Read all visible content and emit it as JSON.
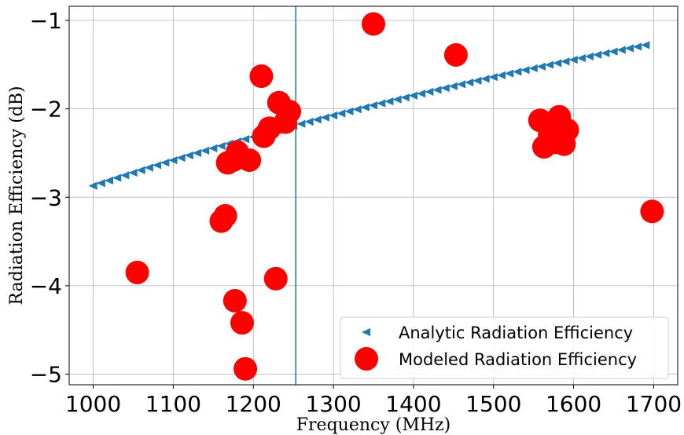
{
  "chart_data": {
    "type": "scatter",
    "xlabel": "Frequency (MHz)",
    "ylabel": "Radiation Efficiency (dB)",
    "xlim": [
      970,
      1730
    ],
    "ylim": [
      -5.12,
      -0.84
    ],
    "xticks": [
      1000,
      1100,
      1200,
      1300,
      1400,
      1500,
      1600,
      1700
    ],
    "yticks": [
      -1,
      -2,
      -3,
      -4,
      -5
    ],
    "xtick_labels": [
      "1000",
      "1100",
      "1200",
      "1300",
      "1400",
      "1500",
      "1600",
      "1700"
    ],
    "ytick_labels": [
      "−1",
      "−2",
      "−3",
      "−4",
      "−5"
    ],
    "grid": true,
    "legend_position": "lower-right",
    "vline_x": 1253,
    "colors": {
      "analytic": "#1f77b4",
      "modeled": "#ff0000",
      "vline": "#1f77b4"
    },
    "series": [
      {
        "name": "Analytic Radiation Efficiency",
        "marker": "triangle-left",
        "x_start": 1000,
        "x_end": 1695,
        "x_step": 10,
        "y_start": -2.87,
        "y_end": -1.27
      },
      {
        "name": "Modeled Radiation Efficiency",
        "marker": "circle",
        "points": [
          [
            1055,
            -3.85
          ],
          [
            1160,
            -3.27
          ],
          [
            1165,
            -3.21
          ],
          [
            1168,
            -2.61
          ],
          [
            1175,
            -2.58
          ],
          [
            1180,
            -2.49
          ],
          [
            1177,
            -4.17
          ],
          [
            1186,
            -4.42
          ],
          [
            1190,
            -4.94
          ],
          [
            1195,
            -2.58
          ],
          [
            1210,
            -1.63
          ],
          [
            1213,
            -2.31
          ],
          [
            1220,
            -2.22
          ],
          [
            1228,
            -3.92
          ],
          [
            1232,
            -1.93
          ],
          [
            1240,
            -2.15
          ],
          [
            1245,
            -2.03
          ],
          [
            1350,
            -1.04
          ],
          [
            1453,
            -1.39
          ],
          [
            1558,
            -2.13
          ],
          [
            1563,
            -2.43
          ],
          [
            1570,
            -2.3
          ],
          [
            1575,
            -2.38
          ],
          [
            1580,
            -2.3
          ],
          [
            1582,
            -2.09
          ],
          [
            1585,
            -2.35
          ],
          [
            1588,
            -2.4
          ],
          [
            1592,
            -2.24
          ],
          [
            1698,
            -3.16
          ]
        ]
      }
    ]
  }
}
